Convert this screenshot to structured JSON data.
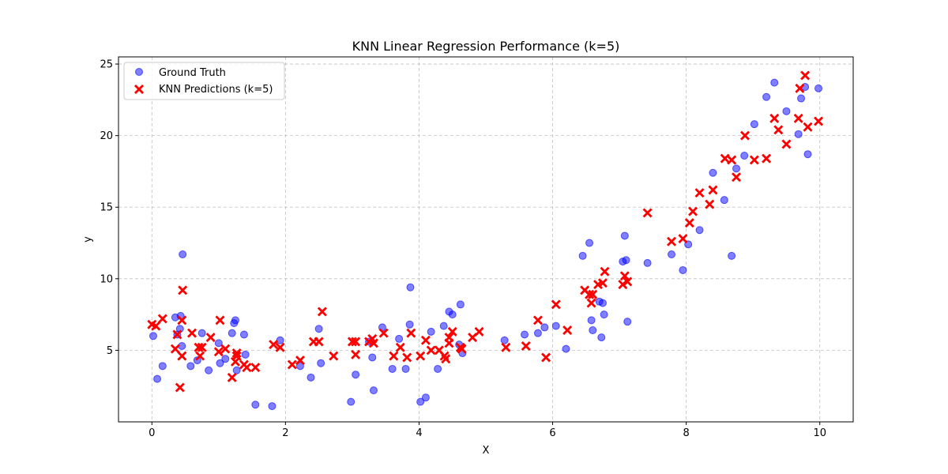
{
  "chart_data": {
    "type": "scatter",
    "title": "KNN Linear Regression Performance (k=5)",
    "xlabel": "X",
    "ylabel": "y",
    "xlim": [
      -0.5,
      10.5
    ],
    "ylim": [
      0.0,
      25.5
    ],
    "xticks": [
      0,
      2,
      4,
      6,
      8,
      10
    ],
    "yticks": [
      5,
      10,
      15,
      20,
      25
    ],
    "grid": true,
    "legend_position": "top-left",
    "series": [
      {
        "name": "Ground Truth",
        "marker": "circle",
        "color": "#0000ff",
        "points": [
          [
            0.02,
            6.0
          ],
          [
            0.08,
            3.0
          ],
          [
            0.16,
            3.9
          ],
          [
            0.35,
            7.3
          ],
          [
            0.38,
            6.1
          ],
          [
            0.42,
            6.5
          ],
          [
            0.43,
            7.4
          ],
          [
            0.45,
            5.3
          ],
          [
            0.46,
            11.7
          ],
          [
            0.58,
            3.9
          ],
          [
            0.68,
            4.3
          ],
          [
            0.75,
            6.2
          ],
          [
            0.85,
            3.6
          ],
          [
            1.0,
            5.5
          ],
          [
            1.02,
            4.1
          ],
          [
            1.1,
            4.4
          ],
          [
            1.2,
            6.2
          ],
          [
            1.23,
            6.9
          ],
          [
            1.25,
            7.1
          ],
          [
            1.27,
            3.6
          ],
          [
            1.38,
            6.1
          ],
          [
            1.4,
            4.7
          ],
          [
            1.55,
            1.2
          ],
          [
            1.8,
            1.1
          ],
          [
            1.92,
            5.7
          ],
          [
            2.22,
            3.9
          ],
          [
            2.38,
            3.1
          ],
          [
            2.5,
            6.5
          ],
          [
            2.53,
            4.1
          ],
          [
            2.98,
            1.4
          ],
          [
            3.05,
            3.3
          ],
          [
            3.25,
            5.6
          ],
          [
            3.3,
            4.5
          ],
          [
            3.32,
            2.2
          ],
          [
            3.45,
            6.6
          ],
          [
            3.6,
            3.7
          ],
          [
            3.7,
            5.8
          ],
          [
            3.8,
            3.7
          ],
          [
            3.86,
            6.8
          ],
          [
            3.87,
            9.4
          ],
          [
            4.02,
            1.4
          ],
          [
            4.1,
            1.7
          ],
          [
            4.18,
            6.3
          ],
          [
            4.28,
            3.7
          ],
          [
            4.37,
            6.7
          ],
          [
            4.45,
            7.7
          ],
          [
            4.5,
            7.5
          ],
          [
            4.6,
            5.4
          ],
          [
            4.62,
            8.2
          ],
          [
            4.65,
            4.8
          ],
          [
            5.28,
            5.7
          ],
          [
            5.58,
            6.1
          ],
          [
            5.78,
            6.2
          ],
          [
            5.88,
            6.6
          ],
          [
            6.05,
            6.7
          ],
          [
            6.2,
            5.1
          ],
          [
            6.45,
            11.6
          ],
          [
            6.55,
            12.5
          ],
          [
            6.58,
            7.1
          ],
          [
            6.6,
            6.4
          ],
          [
            6.7,
            8.4
          ],
          [
            6.73,
            5.9
          ],
          [
            6.75,
            8.3
          ],
          [
            6.77,
            7.5
          ],
          [
            7.05,
            11.2
          ],
          [
            7.08,
            13.0
          ],
          [
            7.1,
            11.3
          ],
          [
            7.12,
            7.0
          ],
          [
            7.42,
            11.1
          ],
          [
            7.78,
            11.7
          ],
          [
            7.95,
            10.6
          ],
          [
            8.03,
            12.4
          ],
          [
            8.2,
            13.4
          ],
          [
            8.4,
            17.4
          ],
          [
            8.57,
            15.5
          ],
          [
            8.68,
            11.6
          ],
          [
            8.75,
            17.7
          ],
          [
            8.87,
            18.6
          ],
          [
            9.02,
            20.8
          ],
          [
            9.2,
            22.7
          ],
          [
            9.32,
            23.7
          ],
          [
            9.5,
            21.7
          ],
          [
            9.68,
            20.1
          ],
          [
            9.72,
            22.6
          ],
          [
            9.78,
            23.4
          ],
          [
            9.82,
            18.7
          ],
          [
            9.98,
            23.3
          ]
        ]
      },
      {
        "name": "KNN Predictions (k=5)",
        "marker": "x",
        "color": "#ff0000",
        "points": [
          [
            0.0,
            6.8
          ],
          [
            0.06,
            6.7
          ],
          [
            0.16,
            7.2
          ],
          [
            0.35,
            5.1
          ],
          [
            0.38,
            6.1
          ],
          [
            0.42,
            2.4
          ],
          [
            0.45,
            4.6
          ],
          [
            0.45,
            7.1
          ],
          [
            0.46,
            9.2
          ],
          [
            0.6,
            6.2
          ],
          [
            0.7,
            5.2
          ],
          [
            0.72,
            4.6
          ],
          [
            0.75,
            5.2
          ],
          [
            0.88,
            5.9
          ],
          [
            1.0,
            4.9
          ],
          [
            1.02,
            7.1
          ],
          [
            1.1,
            5.1
          ],
          [
            1.2,
            3.1
          ],
          [
            1.25,
            4.2
          ],
          [
            1.27,
            4.6
          ],
          [
            1.27,
            4.8
          ],
          [
            1.38,
            4.0
          ],
          [
            1.42,
            3.8
          ],
          [
            1.55,
            3.8
          ],
          [
            1.82,
            5.4
          ],
          [
            1.92,
            5.2
          ],
          [
            2.1,
            4.0
          ],
          [
            2.22,
            4.3
          ],
          [
            2.42,
            5.6
          ],
          [
            2.5,
            5.6
          ],
          [
            2.55,
            7.7
          ],
          [
            2.72,
            4.6
          ],
          [
            3.0,
            5.6
          ],
          [
            3.05,
            5.6
          ],
          [
            3.05,
            4.7
          ],
          [
            3.25,
            5.6
          ],
          [
            3.3,
            5.8
          ],
          [
            3.32,
            5.5
          ],
          [
            3.47,
            6.2
          ],
          [
            3.62,
            4.6
          ],
          [
            3.72,
            5.2
          ],
          [
            3.82,
            4.5
          ],
          [
            3.88,
            6.2
          ],
          [
            4.02,
            4.6
          ],
          [
            4.1,
            5.7
          ],
          [
            4.18,
            5.0
          ],
          [
            4.3,
            5.0
          ],
          [
            4.38,
            4.6
          ],
          [
            4.4,
            4.4
          ],
          [
            4.45,
            5.5
          ],
          [
            4.45,
            5.9
          ],
          [
            4.5,
            6.3
          ],
          [
            4.62,
            5.2
          ],
          [
            4.64,
            5.1
          ],
          [
            4.8,
            5.9
          ],
          [
            4.9,
            6.3
          ],
          [
            5.3,
            5.2
          ],
          [
            5.6,
            5.3
          ],
          [
            5.78,
            7.1
          ],
          [
            5.9,
            4.5
          ],
          [
            6.05,
            8.2
          ],
          [
            6.22,
            6.4
          ],
          [
            6.48,
            9.2
          ],
          [
            6.55,
            8.9
          ],
          [
            6.58,
            8.3
          ],
          [
            6.6,
            8.9
          ],
          [
            6.68,
            9.6
          ],
          [
            6.75,
            9.7
          ],
          [
            6.78,
            10.5
          ],
          [
            7.05,
            9.6
          ],
          [
            7.08,
            10.2
          ],
          [
            7.12,
            9.8
          ],
          [
            7.42,
            14.6
          ],
          [
            7.78,
            12.6
          ],
          [
            7.95,
            12.8
          ],
          [
            8.05,
            13.9
          ],
          [
            8.1,
            14.7
          ],
          [
            8.2,
            16.0
          ],
          [
            8.35,
            15.2
          ],
          [
            8.4,
            16.2
          ],
          [
            8.58,
            18.4
          ],
          [
            8.68,
            18.3
          ],
          [
            8.75,
            17.1
          ],
          [
            8.88,
            20.0
          ],
          [
            9.02,
            18.3
          ],
          [
            9.2,
            18.4
          ],
          [
            9.32,
            21.2
          ],
          [
            9.38,
            20.4
          ],
          [
            9.5,
            19.4
          ],
          [
            9.68,
            21.2
          ],
          [
            9.7,
            23.3
          ],
          [
            9.78,
            24.2
          ],
          [
            9.82,
            20.6
          ],
          [
            9.98,
            21.0
          ]
        ]
      }
    ]
  }
}
